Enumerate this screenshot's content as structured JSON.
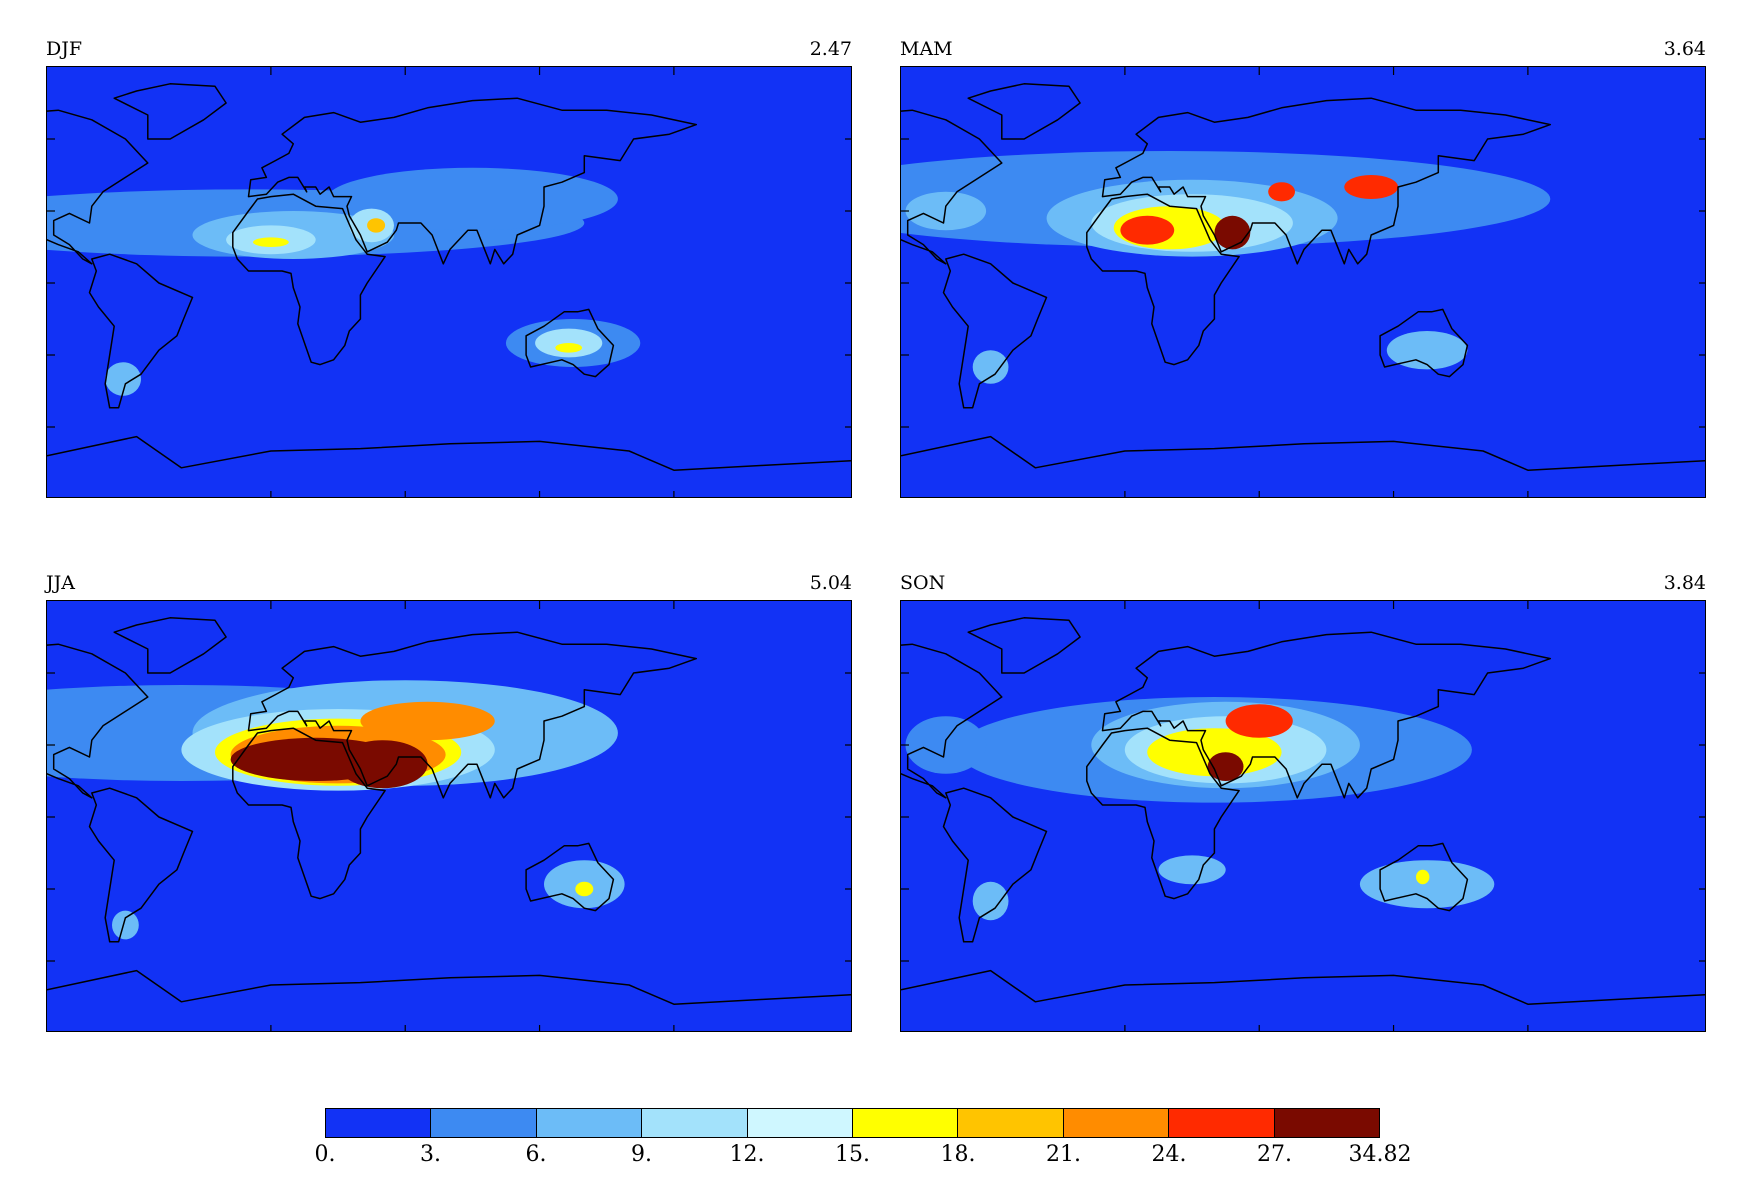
{
  "colors": {
    "ocean": "#1232f5",
    "coast": "#000000",
    "bins": [
      "#1232f5",
      "#3d8af2",
      "#6cbcf7",
      "#a3e2fb",
      "#cff7ff",
      "#ffff00",
      "#ffc400",
      "#ff8c00",
      "#ff2a00",
      "#7a0a00"
    ]
  },
  "panels": [
    {
      "id": "djf",
      "label": "DJF",
      "value": "2.47",
      "blobs": [
        {
          "lon": -10,
          "lat": 25,
          "rx": 150,
          "ry": 14,
          "level": 1
        },
        {
          "lon": 90,
          "lat": 35,
          "rx": 65,
          "ry": 13,
          "level": 1
        },
        {
          "lon": 10,
          "lat": 20,
          "rx": 45,
          "ry": 10,
          "level": 2
        },
        {
          "lon": 0,
          "lat": 18,
          "rx": 20,
          "ry": 6,
          "level": 3
        },
        {
          "lon": 45,
          "lat": 24,
          "rx": 10,
          "ry": 7,
          "level": 3
        },
        {
          "lon": 0,
          "lat": 17,
          "rx": 8,
          "ry": 2,
          "level": 5
        },
        {
          "lon": 47,
          "lat": 24,
          "rx": 4,
          "ry": 3,
          "level": 6
        },
        {
          "lon": 135,
          "lat": -25,
          "rx": 30,
          "ry": 10,
          "level": 1
        },
        {
          "lon": 133,
          "lat": -25,
          "rx": 15,
          "ry": 6,
          "level": 3
        },
        {
          "lon": 133,
          "lat": -27,
          "rx": 6,
          "ry": 2,
          "level": 5
        },
        {
          "lon": -66,
          "lat": -40,
          "rx": 8,
          "ry": 7,
          "level": 2
        }
      ]
    },
    {
      "id": "mam",
      "label": "MAM",
      "value": "3.64",
      "blobs": [
        {
          "lon": 20,
          "lat": 35,
          "rx": 170,
          "ry": 20,
          "level": 1
        },
        {
          "lon": 30,
          "lat": 27,
          "rx": 65,
          "ry": 16,
          "level": 2
        },
        {
          "lon": 30,
          "lat": 25,
          "rx": 45,
          "ry": 12,
          "level": 3
        },
        {
          "lon": 20,
          "lat": 23,
          "rx": 25,
          "ry": 9,
          "level": 5
        },
        {
          "lon": 10,
          "lat": 22,
          "rx": 12,
          "ry": 6,
          "level": 8
        },
        {
          "lon": 48,
          "lat": 21,
          "rx": 8,
          "ry": 7,
          "level": 9
        },
        {
          "lon": 70,
          "lat": 38,
          "rx": 6,
          "ry": 4,
          "level": 8
        },
        {
          "lon": 110,
          "lat": 40,
          "rx": 12,
          "ry": 5,
          "level": 8
        },
        {
          "lon": -80,
          "lat": 30,
          "rx": 18,
          "ry": 8,
          "level": 2
        },
        {
          "lon": 135,
          "lat": -28,
          "rx": 18,
          "ry": 8,
          "level": 2
        },
        {
          "lon": -60,
          "lat": -35,
          "rx": 8,
          "ry": 7,
          "level": 2
        }
      ]
    },
    {
      "id": "jja",
      "label": "JJA",
      "value": "5.04",
      "blobs": [
        {
          "lon": -40,
          "lat": 35,
          "rx": 140,
          "ry": 20,
          "level": 1
        },
        {
          "lon": 60,
          "lat": 35,
          "rx": 95,
          "ry": 22,
          "level": 2
        },
        {
          "lon": 30,
          "lat": 28,
          "rx": 70,
          "ry": 17,
          "level": 3
        },
        {
          "lon": 30,
          "lat": 27,
          "rx": 55,
          "ry": 14,
          "level": 5
        },
        {
          "lon": 30,
          "lat": 26,
          "rx": 48,
          "ry": 12,
          "level": 7
        },
        {
          "lon": 20,
          "lat": 24,
          "rx": 38,
          "ry": 9,
          "level": 9
        },
        {
          "lon": 70,
          "lat": 40,
          "rx": 30,
          "ry": 8,
          "level": 7
        },
        {
          "lon": 50,
          "lat": 22,
          "rx": 20,
          "ry": 10,
          "level": 9
        },
        {
          "lon": 140,
          "lat": -28,
          "rx": 18,
          "ry": 10,
          "level": 2
        },
        {
          "lon": 140,
          "lat": -30,
          "rx": 4,
          "ry": 3,
          "level": 5
        },
        {
          "lon": -65,
          "lat": -45,
          "rx": 6,
          "ry": 6,
          "level": 2
        }
      ]
    },
    {
      "id": "son",
      "label": "SON",
      "value": "3.84",
      "blobs": [
        {
          "lon": 40,
          "lat": 28,
          "rx": 115,
          "ry": 22,
          "level": 1
        },
        {
          "lon": 45,
          "lat": 30,
          "rx": 60,
          "ry": 18,
          "level": 2
        },
        {
          "lon": 45,
          "lat": 28,
          "rx": 45,
          "ry": 14,
          "level": 3
        },
        {
          "lon": 40,
          "lat": 27,
          "rx": 30,
          "ry": 10,
          "level": 5
        },
        {
          "lon": 60,
          "lat": 40,
          "rx": 15,
          "ry": 7,
          "level": 8
        },
        {
          "lon": 45,
          "lat": 21,
          "rx": 8,
          "ry": 6,
          "level": 9
        },
        {
          "lon": -80,
          "lat": 30,
          "rx": 18,
          "ry": 12,
          "level": 1
        },
        {
          "lon": 135,
          "lat": -28,
          "rx": 30,
          "ry": 10,
          "level": 2
        },
        {
          "lon": 133,
          "lat": -25,
          "rx": 3,
          "ry": 3,
          "level": 5
        },
        {
          "lon": 30,
          "lat": -22,
          "rx": 15,
          "ry": 6,
          "level": 2
        },
        {
          "lon": -60,
          "lat": -35,
          "rx": 8,
          "ry": 8,
          "level": 2
        }
      ]
    }
  ],
  "colorbar": {
    "labels": [
      "0.",
      "3.",
      "6.",
      "9.",
      "12.",
      "15.",
      "18.",
      "21.",
      "24.",
      "27.",
      "34.82"
    ]
  }
}
